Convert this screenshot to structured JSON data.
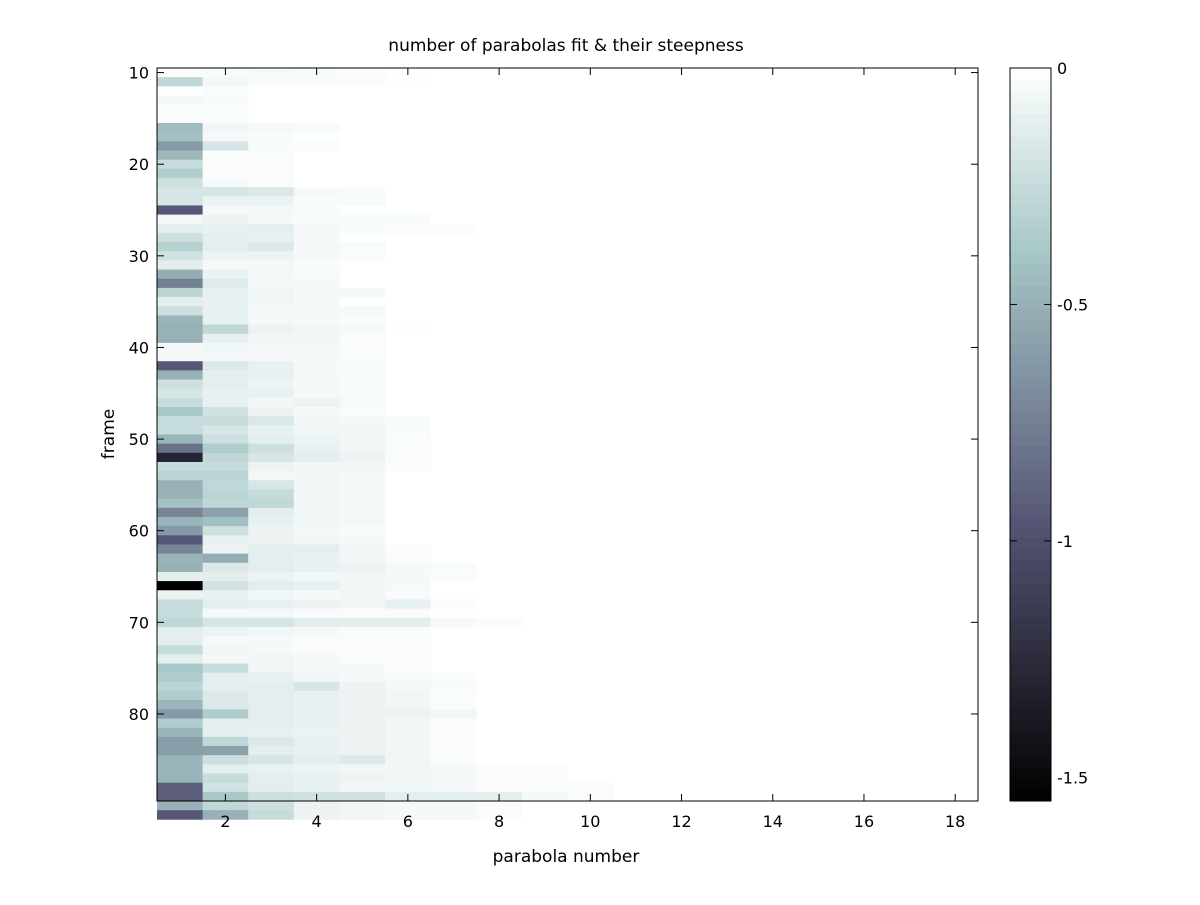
{
  "chart_data": {
    "type": "heatmap",
    "title": "number of parabolas fit & their steepness",
    "xlabel": "parabola number",
    "ylabel": "frame",
    "x_range": [
      0.5,
      18.5
    ],
    "y_range": [
      9.5,
      89.5
    ],
    "y_reversed": true,
    "x_ticks": [
      2,
      4,
      6,
      8,
      10,
      12,
      14,
      16,
      18
    ],
    "y_ticks": [
      10,
      20,
      30,
      40,
      50,
      60,
      70,
      80
    ],
    "colorbar": {
      "range": [
        -1.55,
        0
      ],
      "ticks": [
        0,
        -0.5,
        -1,
        -1.5
      ],
      "colormap": "bone",
      "placement": "right"
    },
    "grid": false,
    "first_frame": 10,
    "columns": 18,
    "rows": [
      [
        -0.02,
        -0.03,
        -0.04,
        -0.03,
        -0.02
      ],
      [
        -0.28,
        -0.06,
        -0.03,
        -0.03,
        -0.02,
        -0.01
      ],
      [
        -0.01,
        -0.02
      ],
      [
        -0.05,
        -0.03
      ],
      [
        -0.02,
        -0.02
      ],
      [
        -0.02,
        -0.02
      ],
      [
        -0.45,
        -0.06,
        -0.04,
        -0.03
      ],
      [
        -0.42,
        -0.05,
        -0.03,
        -0.01
      ],
      [
        -0.62,
        -0.18,
        -0.03,
        -0.02
      ],
      [
        -0.47,
        -0.02,
        -0.02
      ],
      [
        -0.25,
        -0.02,
        -0.02
      ],
      [
        -0.35,
        -0.02,
        -0.02
      ],
      [
        -0.22,
        -0.04,
        -0.02
      ],
      [
        -0.18,
        -0.18,
        -0.15,
        -0.04,
        -0.03
      ],
      [
        -0.18,
        -0.08,
        -0.08,
        -0.03,
        -0.03
      ],
      [
        -0.95,
        -0.05,
        -0.05,
        -0.03
      ],
      [
        -0.05,
        -0.08,
        -0.04,
        -0.03,
        -0.03,
        -0.03
      ],
      [
        -0.12,
        -0.1,
        -0.12,
        -0.05,
        -0.03,
        -0.02,
        -0.02
      ],
      [
        -0.22,
        -0.12,
        -0.1,
        -0.04
      ],
      [
        -0.32,
        -0.12,
        -0.15,
        -0.05,
        -0.03
      ],
      [
        -0.2,
        -0.08,
        -0.08,
        -0.04,
        -0.02
      ],
      [
        -0.12,
        -0.05,
        -0.05,
        -0.03
      ],
      [
        -0.52,
        -0.09,
        -0.05,
        -0.03
      ],
      [
        -0.75,
        -0.14,
        -0.05,
        -0.04
      ],
      [
        -0.3,
        -0.1,
        -0.06,
        -0.04,
        -0.04
      ],
      [
        -0.12,
        -0.1,
        -0.06,
        -0.04
      ],
      [
        -0.22,
        -0.1,
        -0.05,
        -0.04,
        -0.04
      ],
      [
        -0.48,
        -0.1,
        -0.05,
        -0.04,
        -0.02
      ],
      [
        -0.5,
        -0.28,
        -0.08,
        -0.06,
        -0.04,
        -0.01
      ],
      [
        -0.5,
        -0.1,
        -0.06,
        -0.06,
        -0.02
      ],
      [
        -0.05,
        -0.06,
        -0.04,
        -0.04,
        -0.02
      ],
      [
        -0.04,
        -0.05,
        -0.05,
        -0.04,
        -0.02
      ],
      [
        -0.95,
        -0.15,
        -0.1,
        -0.04,
        -0.04
      ],
      [
        -0.5,
        -0.12,
        -0.1,
        -0.04,
        -0.03
      ],
      [
        -0.22,
        -0.12,
        -0.08,
        -0.04,
        -0.03
      ],
      [
        -0.18,
        -0.1,
        -0.1,
        -0.04,
        -0.03
      ],
      [
        -0.25,
        -0.1,
        -0.06,
        -0.08,
        -0.04
      ],
      [
        -0.38,
        -0.2,
        -0.08,
        -0.04,
        -0.02
      ],
      [
        -0.25,
        -0.25,
        -0.16,
        -0.06,
        -0.04,
        -0.03
      ],
      [
        -0.25,
        -0.18,
        -0.1,
        -0.06,
        -0.06,
        -0.03
      ],
      [
        -0.48,
        -0.22,
        -0.12,
        -0.08,
        -0.06,
        -0.02
      ],
      [
        -0.82,
        -0.35,
        -0.22,
        -0.1,
        -0.06,
        -0.02
      ],
      [
        -1.3,
        -0.28,
        -0.18,
        -0.12,
        -0.08,
        -0.02
      ],
      [
        -0.25,
        -0.25,
        -0.08,
        -0.06,
        -0.06,
        -0.02
      ],
      [
        -0.3,
        -0.3,
        -0.05,
        -0.06,
        -0.05
      ],
      [
        -0.5,
        -0.28,
        -0.18,
        -0.06,
        -0.05
      ],
      [
        -0.5,
        -0.3,
        -0.25,
        -0.06,
        -0.05
      ],
      [
        -0.42,
        -0.28,
        -0.28,
        -0.06,
        -0.05
      ],
      [
        -0.72,
        -0.58,
        -0.12,
        -0.06,
        -0.05
      ],
      [
        -0.48,
        -0.42,
        -0.1,
        -0.06,
        -0.05
      ],
      [
        -0.62,
        -0.22,
        -0.08,
        -0.05,
        -0.03
      ],
      [
        -0.95,
        -0.1,
        -0.08,
        -0.06,
        -0.04
      ],
      [
        -0.72,
        -0.08,
        -0.12,
        -0.12,
        -0.06,
        -0.02
      ],
      [
        -0.48,
        -0.52,
        -0.12,
        -0.1,
        -0.06,
        -0.02
      ],
      [
        -0.5,
        -0.15,
        -0.12,
        -0.1,
        -0.08,
        -0.04,
        -0.03
      ],
      [
        -0.12,
        -0.12,
        -0.08,
        -0.06,
        -0.06,
        -0.04,
        -0.02
      ],
      [
        -1.55,
        -0.2,
        -0.12,
        -0.1,
        -0.06,
        -0.04
      ],
      [
        -0.08,
        -0.1,
        -0.06,
        -0.04,
        -0.06,
        -0.03
      ],
      [
        -0.25,
        -0.12,
        -0.1,
        -0.08,
        -0.06,
        -0.1,
        -0.02
      ],
      [
        -0.25,
        -0.05,
        -0.05,
        -0.03,
        -0.02,
        -0.02
      ],
      [
        -0.28,
        -0.18,
        -0.18,
        -0.12,
        -0.12,
        -0.12,
        -0.04,
        -0.02
      ],
      [
        -0.12,
        -0.08,
        -0.06,
        -0.04,
        -0.02,
        -0.02
      ],
      [
        -0.12,
        -0.04,
        -0.04,
        -0.02,
        -0.02,
        -0.02
      ],
      [
        -0.25,
        -0.06,
        -0.04,
        -0.02,
        -0.02,
        -0.02
      ],
      [
        -0.12,
        -0.05,
        -0.06,
        -0.04,
        -0.02,
        -0.02
      ],
      [
        -0.38,
        -0.25,
        -0.06,
        -0.04,
        -0.04,
        -0.02
      ],
      [
        -0.35,
        -0.12,
        -0.1,
        -0.06,
        -0.04,
        -0.04,
        -0.02
      ],
      [
        -0.3,
        -0.12,
        -0.12,
        -0.18,
        -0.08,
        -0.05,
        -0.03
      ],
      [
        -0.35,
        -0.15,
        -0.12,
        -0.1,
        -0.08,
        -0.06,
        -0.02
      ],
      [
        -0.48,
        -0.15,
        -0.12,
        -0.1,
        -0.08,
        -0.06,
        -0.02
      ],
      [
        -0.62,
        -0.35,
        -0.12,
        -0.1,
        -0.08,
        -0.08,
        -0.06
      ],
      [
        -0.35,
        -0.12,
        -0.12,
        -0.1,
        -0.08,
        -0.06,
        -0.02
      ],
      [
        -0.48,
        -0.12,
        -0.1,
        -0.08,
        -0.08,
        -0.06,
        -0.02
      ],
      [
        -0.6,
        -0.28,
        -0.15,
        -0.1,
        -0.08,
        -0.06,
        -0.02
      ],
      [
        -0.6,
        -0.58,
        -0.12,
        -0.1,
        -0.08,
        -0.06,
        -0.02
      ],
      [
        -0.48,
        -0.22,
        -0.18,
        -0.12,
        -0.15,
        -0.06,
        -0.02
      ],
      [
        -0.48,
        -0.12,
        -0.1,
        -0.08,
        -0.06,
        -0.06,
        -0.05,
        -0.02,
        -0.02
      ],
      [
        -0.48,
        -0.25,
        -0.12,
        -0.1,
        -0.08,
        -0.06,
        -0.04,
        -0.02,
        -0.02
      ],
      [
        -0.92,
        -0.2,
        -0.12,
        -0.1,
        -0.06,
        -0.06,
        -0.04,
        -0.02,
        -0.02,
        -0.02
      ],
      [
        -0.92,
        -0.38,
        -0.22,
        -0.2,
        -0.2,
        -0.12,
        -0.12,
        -0.12,
        -0.04,
        -0.02
      ],
      [
        -0.5,
        -0.28,
        -0.22,
        -0.08,
        -0.06,
        -0.04,
        -0.04,
        -0.02
      ],
      [
        -0.95,
        -0.5,
        -0.25,
        -0.08,
        -0.06,
        -0.04,
        -0.04,
        -0.02
      ]
    ]
  }
}
